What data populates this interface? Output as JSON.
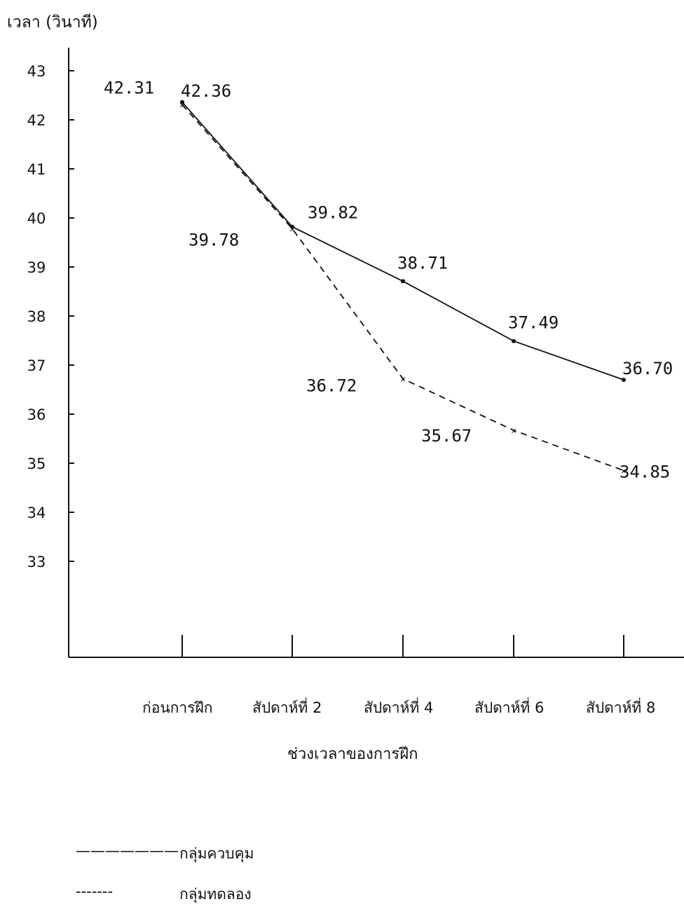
{
  "chart_data": {
    "type": "line",
    "ylabel": "เวลา (วินาที)",
    "xlabel": "ช่วงเวลาของการฝึก",
    "categories": [
      "ก่อนการฝึก",
      "สัปดาห์ที่ 2",
      "สัปดาห์ที่ 4",
      "สัปดาห์ที่ 6",
      "สัปดาห์ที่ 8"
    ],
    "yticks": [
      "33",
      "34",
      "35",
      "36",
      "37",
      "38",
      "39",
      "40",
      "41",
      "42",
      "43"
    ],
    "ylim": [
      33,
      43
    ],
    "grid": false,
    "series": [
      {
        "name": "กลุ่มควบคุม",
        "style": "solid",
        "values": [
          42.36,
          39.82,
          38.71,
          37.49,
          36.7
        ],
        "labels": [
          "42.36",
          "39.82",
          "38.71",
          "37.49",
          "36.70"
        ]
      },
      {
        "name": "กลุ่มทดลอง",
        "style": "dashed",
        "values": [
          42.31,
          39.78,
          36.72,
          35.67,
          34.85
        ],
        "labels": [
          "42.31",
          "39.78",
          "36.72",
          "35.67",
          "34.85"
        ]
      }
    ]
  },
  "legend": {
    "items": [
      {
        "sample": "———————",
        "label": "กลุ่มควบคุม"
      },
      {
        "sample": "-------",
        "label": "กลุ่มทดลอง"
      }
    ]
  }
}
